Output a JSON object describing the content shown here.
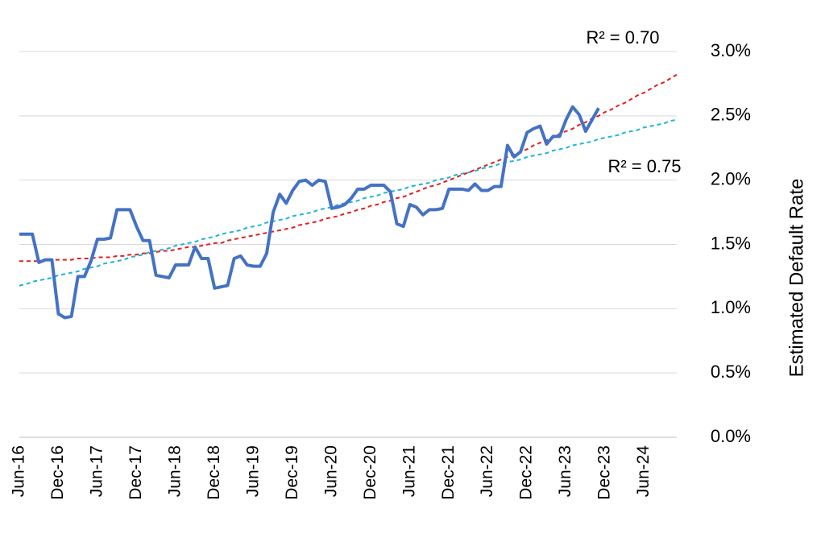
{
  "chart_data": {
    "type": "line",
    "y_label": "Estimated Default Rate",
    "annotations": [
      "R² = 0.70",
      "R² = 0.75"
    ],
    "categories": [
      "Jun-16",
      null,
      null,
      null,
      null,
      null,
      "Dec-16",
      null,
      null,
      null,
      null,
      null,
      "Jun-17",
      null,
      null,
      null,
      null,
      null,
      "Dec-17",
      null,
      null,
      null,
      null,
      null,
      "Jun-18",
      null,
      null,
      null,
      null,
      null,
      "Dec-18",
      null,
      null,
      null,
      null,
      null,
      "Jun-19",
      null,
      null,
      null,
      null,
      null,
      "Dec-19",
      null,
      null,
      null,
      null,
      null,
      "Jun-20",
      null,
      null,
      null,
      null,
      null,
      "Dec-20",
      null,
      null,
      null,
      null,
      null,
      "Jun-21",
      null,
      null,
      null,
      null,
      null,
      "Dec-21",
      null,
      null,
      null,
      null,
      null,
      "Jun-22",
      null,
      null,
      null,
      null,
      null,
      "Dec-22",
      null,
      null,
      null,
      null,
      null,
      "Jun-23",
      null,
      null,
      null,
      null,
      null,
      "Dec-23",
      null,
      null,
      null,
      null,
      null,
      "Jun-24",
      null,
      null,
      null,
      null,
      null
    ],
    "series": [
      {
        "color": "#4472c4",
        "values": [
          1.58,
          1.58,
          1.58,
          1.36,
          1.38,
          1.38,
          0.96,
          0.93,
          0.94,
          1.25,
          1.25,
          1.37,
          1.54,
          1.54,
          1.55,
          1.77,
          1.77,
          1.77,
          1.64,
          1.53,
          1.53,
          1.26,
          1.25,
          1.24,
          1.34,
          1.34,
          1.34,
          1.48,
          1.39,
          1.39,
          1.16,
          1.17,
          1.18,
          1.39,
          1.41,
          1.34,
          1.33,
          1.33,
          1.43,
          1.75,
          1.89,
          1.82,
          1.92,
          1.99,
          2.0,
          1.96,
          2.0,
          1.99,
          1.78,
          1.79,
          1.81,
          1.86,
          1.93,
          1.93,
          1.96,
          1.96,
          1.96,
          1.91,
          1.66,
          1.64,
          1.81,
          1.79,
          1.73,
          1.77,
          1.77,
          1.78,
          1.93,
          1.93,
          1.93,
          1.92,
          1.97,
          1.92,
          1.92,
          1.95,
          1.95,
          2.27,
          2.18,
          2.22,
          2.37,
          2.4,
          2.42,
          2.28,
          2.34,
          2.34,
          2.47,
          2.57,
          2.51,
          2.38,
          2.47,
          2.56,
          null,
          null,
          null,
          null,
          null,
          null,
          null,
          null,
          null,
          null,
          null,
          null
        ]
      },
      {
        "color": "#e0201f",
        "dashed": true,
        "values": [
          1.37,
          1.37,
          1.37,
          1.37,
          1.37,
          1.38,
          1.38,
          1.38,
          1.38,
          1.39,
          1.39,
          1.39,
          1.4,
          1.4,
          1.4,
          1.41,
          1.41,
          1.42,
          1.42,
          1.43,
          1.43,
          1.44,
          1.45,
          1.45,
          1.46,
          1.47,
          1.48,
          1.48,
          1.49,
          1.5,
          1.51,
          1.51,
          1.53,
          1.54,
          1.55,
          1.56,
          1.57,
          1.58,
          1.59,
          1.6,
          1.61,
          1.62,
          1.63,
          1.65,
          1.66,
          1.67,
          1.68,
          1.7,
          1.71,
          1.72,
          1.74,
          1.75,
          1.77,
          1.78,
          1.8,
          1.81,
          1.83,
          1.84,
          1.86,
          1.87,
          1.89,
          1.91,
          1.93,
          1.95,
          1.96,
          1.98,
          2.0,
          2.02,
          2.04,
          2.06,
          2.08,
          2.1,
          2.12,
          2.14,
          2.16,
          2.18,
          2.2,
          2.22,
          2.24,
          2.27,
          2.29,
          2.31,
          2.33,
          2.36,
          2.38,
          2.4,
          2.43,
          2.45,
          2.48,
          2.5,
          2.53,
          2.55,
          2.58,
          2.6,
          2.63,
          2.66,
          2.68,
          2.71,
          2.74,
          2.76,
          2.79,
          2.82
        ]
      },
      {
        "color": "#1fb4d6",
        "dashed": true,
        "values": [
          1.18,
          1.19,
          1.21,
          1.22,
          1.23,
          1.24,
          1.26,
          1.27,
          1.28,
          1.29,
          1.31,
          1.32,
          1.33,
          1.35,
          1.36,
          1.37,
          1.38,
          1.4,
          1.41,
          1.42,
          1.44,
          1.45,
          1.46,
          1.47,
          1.49,
          1.5,
          1.51,
          1.52,
          1.54,
          1.55,
          1.56,
          1.58,
          1.59,
          1.6,
          1.61,
          1.63,
          1.64,
          1.65,
          1.67,
          1.68,
          1.69,
          1.7,
          1.72,
          1.73,
          1.74,
          1.75,
          1.77,
          1.78,
          1.79,
          1.81,
          1.82,
          1.83,
          1.84,
          1.86,
          1.87,
          1.88,
          1.9,
          1.91,
          1.92,
          1.93,
          1.95,
          1.96,
          1.97,
          1.98,
          2.0,
          2.01,
          2.02,
          2.04,
          2.05,
          2.06,
          2.07,
          2.09,
          2.1,
          2.11,
          2.13,
          2.14,
          2.15,
          2.16,
          2.18,
          2.19,
          2.2,
          2.21,
          2.23,
          2.24,
          2.25,
          2.27,
          2.28,
          2.29,
          2.3,
          2.32,
          2.33,
          2.34,
          2.35,
          2.37,
          2.38,
          2.39,
          2.41,
          2.42,
          2.43,
          2.44,
          2.46,
          2.47
        ]
      }
    ],
    "ylim": [
      0,
      3
    ],
    "yticks": [
      {
        "value": 0,
        "label": "0.0%"
      },
      {
        "value": 0.5,
        "label": "0.5%"
      },
      {
        "value": 1,
        "label": "1.0%"
      },
      {
        "value": 1.5,
        "label": "1.5%"
      },
      {
        "value": 2,
        "label": "2.0%"
      },
      {
        "value": 2.5,
        "label": "2.5%"
      },
      {
        "value": 3,
        "label": "3.0%"
      }
    ],
    "grid": true,
    "y_axis_side": "right"
  }
}
